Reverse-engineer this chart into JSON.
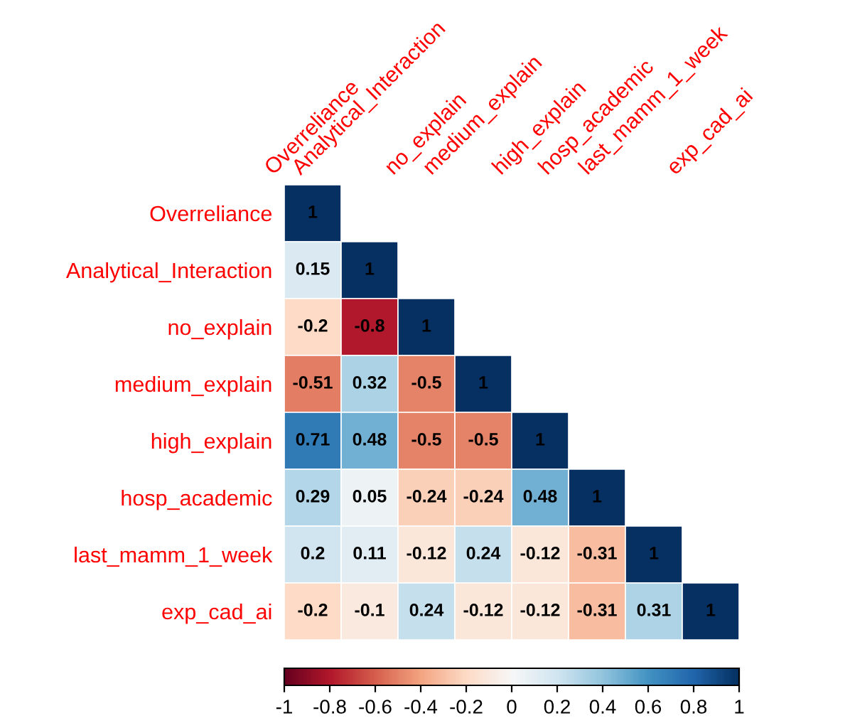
{
  "chart_data": {
    "type": "heatmap",
    "categories": [
      "Overreliance",
      "Analytical_Interaction",
      "no_explain",
      "medium_explain",
      "high_explain",
      "hosp_academic",
      "last_mamm_1_week",
      "exp_cad_ai"
    ],
    "y_categories": [
      "Overreliance",
      "Analytical_Interaction",
      "no_explain",
      "medium_explain",
      "high_explain",
      "hosp_academic",
      "last_mamm_1_week",
      "exp_cad_ai"
    ],
    "cells": [
      [
        1,
        null,
        null,
        null,
        null,
        null,
        null,
        null
      ],
      [
        0.15,
        1,
        null,
        null,
        null,
        null,
        null,
        null
      ],
      [
        -0.2,
        -0.8,
        1,
        null,
        null,
        null,
        null,
        null
      ],
      [
        -0.51,
        0.32,
        -0.5,
        1,
        null,
        null,
        null,
        null
      ],
      [
        0.71,
        0.48,
        -0.5,
        -0.5,
        1,
        null,
        null,
        null
      ],
      [
        0.29,
        0.05,
        -0.24,
        -0.24,
        0.48,
        1,
        null,
        null
      ],
      [
        0.2,
        0.11,
        -0.12,
        0.24,
        -0.12,
        -0.31,
        1,
        null
      ],
      [
        -0.2,
        -0.1,
        0.24,
        -0.12,
        -0.12,
        -0.31,
        0.31,
        1
      ]
    ],
    "data_labels": true,
    "clim": [
      -1,
      1
    ],
    "cticks": [
      -1,
      -0.8,
      -0.6,
      -0.4,
      -0.2,
      0,
      0.2,
      0.4,
      0.6,
      0.8,
      1
    ]
  }
}
